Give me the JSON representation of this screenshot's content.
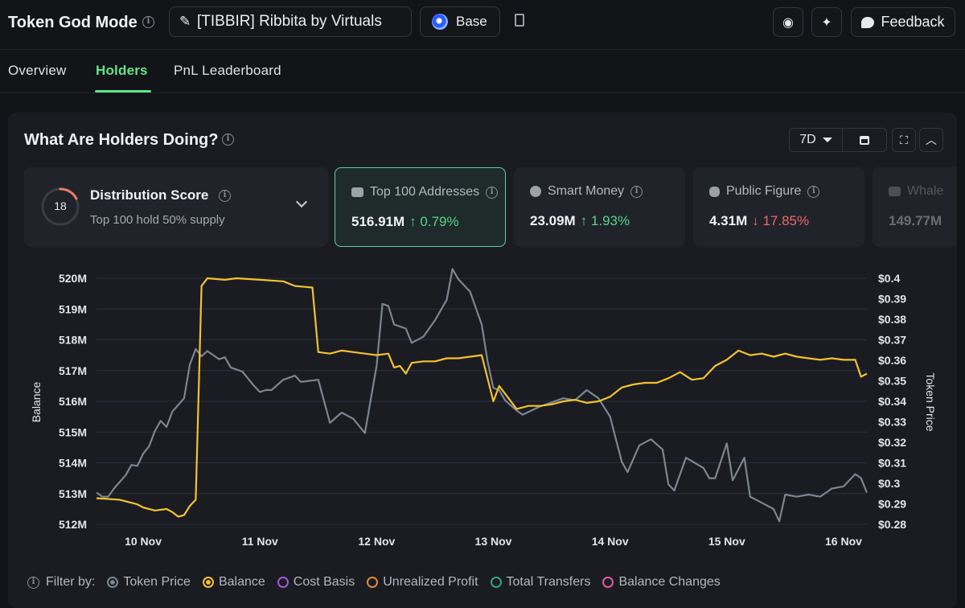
{
  "header": {
    "app_title": "Token God Mode",
    "token_name": "[TIBBIR] Ribbita by Virtuals",
    "chain": "Base",
    "feedback_label": "Feedback"
  },
  "tabs": [
    {
      "label": "Overview",
      "active": false
    },
    {
      "label": "Holders",
      "active": true
    },
    {
      "label": "PnL Leaderboard",
      "active": false
    }
  ],
  "panel": {
    "title": "What Are Holders Doing?",
    "range": "7D"
  },
  "cards": {
    "distribution": {
      "score": "18",
      "title": "Distribution Score",
      "subtitle": "Top 100 hold 50% supply"
    },
    "top100": {
      "label": "Top 100 Addresses",
      "value": "516.91M",
      "change": "↑ 0.79%"
    },
    "smart": {
      "label": "Smart Money",
      "value": "23.09M",
      "change": "↑ 1.93%"
    },
    "public": {
      "label": "Public Figure",
      "value": "4.31M",
      "change": "↓ 17.85%"
    },
    "whale": {
      "label": "Whale",
      "value": "149.77M"
    }
  },
  "legend": {
    "filter_label": "Filter by:",
    "items": [
      {
        "label": "Token Price",
        "color": "#7d8591",
        "filled": true
      },
      {
        "label": "Balance",
        "color": "#f2c230",
        "filled": true
      },
      {
        "label": "Cost Basis",
        "color": "#a35ad8",
        "filled": false
      },
      {
        "label": "Unrealized Profit",
        "color": "#e08a3c",
        "filled": false
      },
      {
        "label": "Total Transfers",
        "color": "#2fa58c",
        "filled": false
      },
      {
        "label": "Balance Changes",
        "color": "#e05aa8",
        "filled": false
      }
    ]
  },
  "chart_data": {
    "type": "line",
    "xlabel": "",
    "ylabel": "Balance",
    "y2label": "Token Price",
    "x_ticks": [
      "10 Nov",
      "11 Nov",
      "12 Nov",
      "13 Nov",
      "14 Nov",
      "15 Nov",
      "16 Nov"
    ],
    "ylim": [
      512,
      520
    ],
    "y_ticks": [
      "512M",
      "513M",
      "514M",
      "515M",
      "516M",
      "517M",
      "518M",
      "519M",
      "520M"
    ],
    "y2lim": [
      0.28,
      0.4
    ],
    "y2_ticks": [
      "$0.28",
      "$0.29",
      "$0.3",
      "$0.31",
      "$0.32",
      "$0.33",
      "$0.34",
      "$0.35",
      "$0.36",
      "$0.37",
      "$0.38",
      "$0.39",
      "$0.4"
    ],
    "x_range_days": [
      9.6,
      16.2
    ],
    "grid": true,
    "series": [
      {
        "name": "Balance",
        "axis": "left",
        "color": "#f2c230",
        "points": [
          [
            9.6,
            512.85
          ],
          [
            9.8,
            512.8
          ],
          [
            9.95,
            512.65
          ],
          [
            10.0,
            512.55
          ],
          [
            10.1,
            512.45
          ],
          [
            10.2,
            512.5
          ],
          [
            10.25,
            512.4
          ],
          [
            10.3,
            512.25
          ],
          [
            10.35,
            512.3
          ],
          [
            10.4,
            512.6
          ],
          [
            10.45,
            512.8
          ],
          [
            10.5,
            519.75
          ],
          [
            10.55,
            520.0
          ],
          [
            10.7,
            519.95
          ],
          [
            10.8,
            520.0
          ],
          [
            11.0,
            519.95
          ],
          [
            11.2,
            519.9
          ],
          [
            11.3,
            519.75
          ],
          [
            11.45,
            519.7
          ],
          [
            11.5,
            517.6
          ],
          [
            11.6,
            517.55
          ],
          [
            11.7,
            517.65
          ],
          [
            11.8,
            517.6
          ],
          [
            11.9,
            517.55
          ],
          [
            12.0,
            517.5
          ],
          [
            12.1,
            517.55
          ],
          [
            12.15,
            517.1
          ],
          [
            12.2,
            517.15
          ],
          [
            12.25,
            516.9
          ],
          [
            12.3,
            517.25
          ],
          [
            12.4,
            517.3
          ],
          [
            12.5,
            517.3
          ],
          [
            12.6,
            517.4
          ],
          [
            12.7,
            517.4
          ],
          [
            12.8,
            517.45
          ],
          [
            12.9,
            517.5
          ],
          [
            13.0,
            516.0
          ],
          [
            13.05,
            516.5
          ],
          [
            13.1,
            516.25
          ],
          [
            13.2,
            515.75
          ],
          [
            13.3,
            515.85
          ],
          [
            13.4,
            515.85
          ],
          [
            13.5,
            515.9
          ],
          [
            13.6,
            516.0
          ],
          [
            13.7,
            516.05
          ],
          [
            13.8,
            515.95
          ],
          [
            13.9,
            516.0
          ],
          [
            14.0,
            516.15
          ],
          [
            14.1,
            516.45
          ],
          [
            14.2,
            516.55
          ],
          [
            14.3,
            516.6
          ],
          [
            14.4,
            516.6
          ],
          [
            14.5,
            516.75
          ],
          [
            14.6,
            516.95
          ],
          [
            14.7,
            516.7
          ],
          [
            14.8,
            516.75
          ],
          [
            14.9,
            517.15
          ],
          [
            15.0,
            517.35
          ],
          [
            15.1,
            517.65
          ],
          [
            15.2,
            517.5
          ],
          [
            15.3,
            517.55
          ],
          [
            15.4,
            517.45
          ],
          [
            15.5,
            517.55
          ],
          [
            15.6,
            517.45
          ],
          [
            15.7,
            517.4
          ],
          [
            15.8,
            517.35
          ],
          [
            15.9,
            517.4
          ],
          [
            16.0,
            517.35
          ],
          [
            16.1,
            517.35
          ],
          [
            16.15,
            516.8
          ],
          [
            16.2,
            516.9
          ]
        ]
      },
      {
        "name": "Token Price",
        "axis": "right",
        "color": "#7d8591",
        "points": [
          [
            9.6,
            0.2955
          ],
          [
            9.65,
            0.2935
          ],
          [
            9.7,
            0.2935
          ],
          [
            9.75,
            0.2975
          ],
          [
            9.85,
            0.304
          ],
          [
            9.9,
            0.309
          ],
          [
            9.95,
            0.3085
          ],
          [
            10.0,
            0.3145
          ],
          [
            10.05,
            0.318
          ],
          [
            10.1,
            0.3255
          ],
          [
            10.15,
            0.3305
          ],
          [
            10.2,
            0.3275
          ],
          [
            10.25,
            0.335
          ],
          [
            10.35,
            0.3415
          ],
          [
            10.4,
            0.358
          ],
          [
            10.45,
            0.3655
          ],
          [
            10.5,
            0.362
          ],
          [
            10.55,
            0.3645
          ],
          [
            10.6,
            0.3625
          ],
          [
            10.65,
            0.3605
          ],
          [
            10.7,
            0.3615
          ],
          [
            10.75,
            0.3565
          ],
          [
            10.85,
            0.3545
          ],
          [
            10.95,
            0.3475
          ],
          [
            11.0,
            0.3445
          ],
          [
            11.05,
            0.3455
          ],
          [
            11.1,
            0.3455
          ],
          [
            11.2,
            0.3505
          ],
          [
            11.3,
            0.3525
          ],
          [
            11.35,
            0.3495
          ],
          [
            11.5,
            0.3505
          ],
          [
            11.6,
            0.3295
          ],
          [
            11.7,
            0.3345
          ],
          [
            11.8,
            0.3315
          ],
          [
            11.9,
            0.3245
          ],
          [
            12.0,
            0.3575
          ],
          [
            12.05,
            0.3875
          ],
          [
            12.1,
            0.3865
          ],
          [
            12.15,
            0.3775
          ],
          [
            12.25,
            0.3755
          ],
          [
            12.3,
            0.3685
          ],
          [
            12.4,
            0.3715
          ],
          [
            12.5,
            0.3795
          ],
          [
            12.6,
            0.3895
          ],
          [
            12.65,
            0.4045
          ],
          [
            12.7,
            0.3995
          ],
          [
            12.8,
            0.3935
          ],
          [
            12.9,
            0.3775
          ],
          [
            12.95,
            0.3595
          ],
          [
            13.0,
            0.3465
          ],
          [
            13.05,
            0.3455
          ],
          [
            13.1,
            0.3405
          ],
          [
            13.2,
            0.3355
          ],
          [
            13.25,
            0.3335
          ],
          [
            13.4,
            0.3375
          ],
          [
            13.5,
            0.3395
          ],
          [
            13.6,
            0.3415
          ],
          [
            13.7,
            0.3405
          ],
          [
            13.8,
            0.3455
          ],
          [
            13.9,
            0.3415
          ],
          [
            14.0,
            0.3325
          ],
          [
            14.05,
            0.3215
          ],
          [
            14.1,
            0.3105
          ],
          [
            14.15,
            0.3055
          ],
          [
            14.25,
            0.3185
          ],
          [
            14.35,
            0.3215
          ],
          [
            14.45,
            0.3165
          ],
          [
            14.5,
            0.2995
          ],
          [
            14.55,
            0.2965
          ],
          [
            14.65,
            0.3125
          ],
          [
            14.8,
            0.3075
          ],
          [
            14.85,
            0.3025
          ],
          [
            14.9,
            0.3025
          ],
          [
            15.0,
            0.3195
          ],
          [
            15.05,
            0.3015
          ],
          [
            15.15,
            0.3125
          ],
          [
            15.2,
            0.2935
          ],
          [
            15.3,
            0.2905
          ],
          [
            15.4,
            0.2875
          ],
          [
            15.45,
            0.2815
          ],
          [
            15.5,
            0.2945
          ],
          [
            15.6,
            0.2935
          ],
          [
            15.7,
            0.2945
          ],
          [
            15.8,
            0.2935
          ],
          [
            15.9,
            0.2975
          ],
          [
            16.0,
            0.2985
          ],
          [
            16.1,
            0.3045
          ],
          [
            16.15,
            0.3025
          ],
          [
            16.2,
            0.2955
          ]
        ]
      }
    ]
  }
}
